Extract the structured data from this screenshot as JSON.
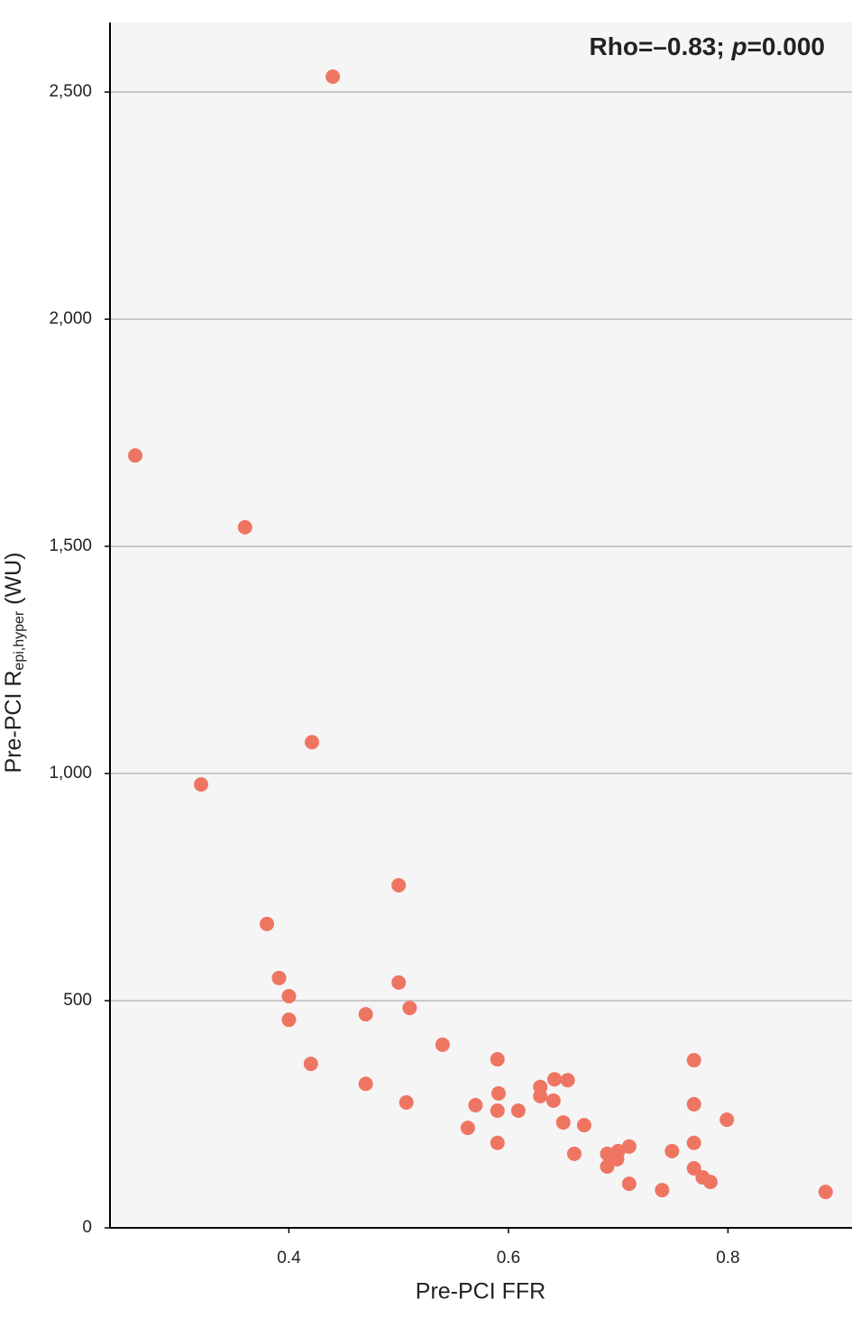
{
  "chart_data": {
    "type": "scatter",
    "annotation": {
      "text": "Rho=–0.83; ",
      "italic": "p",
      "rest": "=0.000"
    },
    "x_label": "Pre-PCI FFR",
    "y_label": {
      "main": "Pre-PCI R",
      "sub": "epi,hyper",
      "unit": " (WU)"
    },
    "color": "#ef7563",
    "grid": true,
    "xlim": [
      0.237,
      0.913
    ],
    "ylim": [
      0,
      2653
    ],
    "xticks": [
      0.4,
      0.6,
      0.8
    ],
    "yticks": [
      0,
      500,
      {
        "value": 1000,
        "label": "1,000"
      },
      {
        "value": 1500,
        "label": "1,500"
      },
      {
        "value": 2000,
        "label": "2,000"
      },
      {
        "value": 2500,
        "label": "2,500"
      }
    ],
    "x": [
      0.26,
      0.44,
      0.36,
      0.421,
      0.32,
      0.38,
      0.391,
      0.4,
      0.4,
      0.42,
      0.47,
      0.47,
      0.5,
      0.5,
      0.51,
      0.507,
      0.54,
      0.563,
      0.57,
      0.59,
      0.591,
      0.59,
      0.59,
      0.609,
      0.629,
      0.629,
      0.642,
      0.654,
      0.641,
      0.65,
      0.669,
      0.66,
      0.69,
      0.7,
      0.71,
      0.699,
      0.69,
      0.71,
      0.74,
      0.749,
      0.769,
      0.769,
      0.769,
      0.769,
      0.777,
      0.784,
      0.799,
      0.889
    ],
    "values": [
      1700,
      2534,
      1542,
      1069,
      976,
      669,
      550,
      510,
      458,
      361,
      470,
      317,
      754,
      540,
      484,
      276,
      403,
      220,
      270,
      371,
      296,
      258,
      187,
      258,
      310,
      290,
      327,
      325,
      280,
      232,
      226,
      163,
      163,
      169,
      179,
      151,
      135,
      97,
      83,
      169,
      369,
      272,
      187,
      131,
      111,
      101,
      238,
      79
    ]
  }
}
